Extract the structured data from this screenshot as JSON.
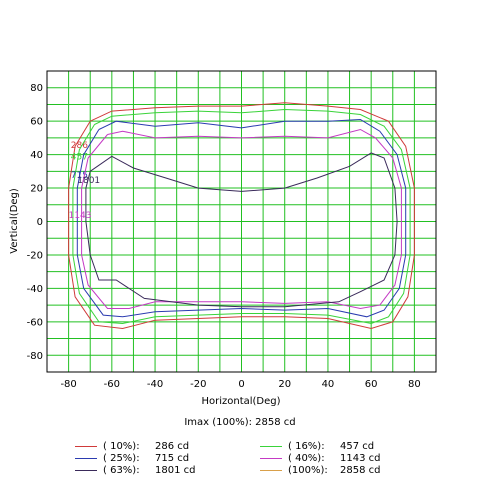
{
  "chart_data": {
    "type": "line",
    "xlabel": "Horizontal(Deg)",
    "ylabel": "Vertical(Deg)",
    "xlim": [
      -90,
      90
    ],
    "ylim": [
      -90,
      90
    ],
    "x_ticks": [
      "-80",
      "-60",
      "-40",
      "-20",
      "0",
      "20",
      "40",
      "60",
      "80"
    ],
    "y_ticks": [
      "80",
      "60",
      "40",
      "20",
      "0",
      "-20",
      "-40",
      "-60",
      "-80"
    ],
    "grid": true,
    "grid_color": "#22c022",
    "imax_label": "Imax (100%): 2858 cd",
    "series": [
      {
        "name": "( 10%):   286 cd",
        "pct": "( 10%):",
        "val": "286 cd",
        "color": "#d03a3a",
        "label": "286",
        "label_xy": [
          -79,
          44
        ],
        "points": [
          [
            -70,
            60
          ],
          [
            -60,
            66
          ],
          [
            -40,
            68
          ],
          [
            -20,
            69
          ],
          [
            0,
            69
          ],
          [
            20,
            71
          ],
          [
            40,
            69
          ],
          [
            55,
            67
          ],
          [
            68,
            60
          ],
          [
            76,
            45
          ],
          [
            80,
            20
          ],
          [
            80,
            -20
          ],
          [
            77,
            -45
          ],
          [
            70,
            -60
          ],
          [
            60,
            -64
          ],
          [
            40,
            -58
          ],
          [
            20,
            -57
          ],
          [
            0,
            -57
          ],
          [
            -20,
            -58
          ],
          [
            -40,
            -59
          ],
          [
            -55,
            -64
          ],
          [
            -68,
            -62
          ],
          [
            -77,
            -45
          ],
          [
            -80,
            -20
          ],
          [
            -80,
            20
          ],
          [
            -77,
            45
          ],
          [
            -70,
            60
          ]
        ]
      },
      {
        "name": "( 16%):   457 cd",
        "pct": "( 16%):",
        "val": "457 cd",
        "color": "#3ad33a",
        "label": "457",
        "label_xy": [
          -79,
          37
        ],
        "points": [
          [
            -68,
            58
          ],
          [
            -60,
            63
          ],
          [
            -40,
            65
          ],
          [
            -20,
            66
          ],
          [
            0,
            65
          ],
          [
            20,
            67
          ],
          [
            40,
            66
          ],
          [
            55,
            64
          ],
          [
            66,
            57
          ],
          [
            74,
            43
          ],
          [
            78,
            20
          ],
          [
            78,
            -20
          ],
          [
            75,
            -43
          ],
          [
            68,
            -57
          ],
          [
            60,
            -61
          ],
          [
            40,
            -56
          ],
          [
            20,
            -55
          ],
          [
            0,
            -55
          ],
          [
            -20,
            -56
          ],
          [
            -40,
            -57
          ],
          [
            -55,
            -61
          ],
          [
            -66,
            -60
          ],
          [
            -75,
            -43
          ],
          [
            -78,
            -20
          ],
          [
            -78,
            20
          ],
          [
            -75,
            43
          ],
          [
            -68,
            58
          ]
        ]
      },
      {
        "name": "( 25%):   715 cd",
        "pct": "( 25%):",
        "val": "715 cd",
        "color": "#2b3bb0",
        "label": "715",
        "label_xy": [
          -79,
          26
        ],
        "points": [
          [
            -66,
            55
          ],
          [
            -58,
            60
          ],
          [
            -40,
            57
          ],
          [
            -20,
            59
          ],
          [
            0,
            56
          ],
          [
            20,
            60
          ],
          [
            40,
            60
          ],
          [
            55,
            61
          ],
          [
            64,
            54
          ],
          [
            72,
            40
          ],
          [
            76,
            20
          ],
          [
            76,
            -20
          ],
          [
            73,
            -40
          ],
          [
            66,
            -53
          ],
          [
            58,
            -57
          ],
          [
            40,
            -52
          ],
          [
            20,
            -53
          ],
          [
            0,
            -52
          ],
          [
            -20,
            -53
          ],
          [
            -40,
            -54
          ],
          [
            -55,
            -57
          ],
          [
            -64,
            -56
          ],
          [
            -73,
            -40
          ],
          [
            -76,
            -20
          ],
          [
            -76,
            20
          ],
          [
            -73,
            40
          ],
          [
            -66,
            55
          ]
        ]
      },
      {
        "name": "( 40%):  1143 cd",
        "pct": "( 40%):",
        "val": "1143 cd",
        "color": "#c43ac4",
        "label": "1143",
        "label_xy": [
          -80,
          2
        ],
        "points": [
          [
            -62,
            52
          ],
          [
            -55,
            54
          ],
          [
            -40,
            50
          ],
          [
            -20,
            51
          ],
          [
            0,
            50
          ],
          [
            20,
            51
          ],
          [
            40,
            50
          ],
          [
            55,
            55
          ],
          [
            62,
            50
          ],
          [
            70,
            38
          ],
          [
            74,
            20
          ],
          [
            74,
            -20
          ],
          [
            71,
            -38
          ],
          [
            64,
            -50
          ],
          [
            55,
            -52
          ],
          [
            40,
            -48
          ],
          [
            20,
            -49
          ],
          [
            0,
            -48
          ],
          [
            -20,
            -48
          ],
          [
            -40,
            -48
          ],
          [
            -52,
            -52
          ],
          [
            -62,
            -52
          ],
          [
            -71,
            -38
          ],
          [
            -74,
            -20
          ],
          [
            -74,
            20
          ],
          [
            -71,
            38
          ],
          [
            -62,
            52
          ]
        ]
      },
      {
        "name": "( 63%):  1801 cd",
        "pct": "( 63%):",
        "val": "1801 cd",
        "color": "#3a2a5a",
        "label": "1801",
        "label_xy": [
          -76,
          23
        ],
        "points": [
          [
            -70,
            30
          ],
          [
            -60,
            39
          ],
          [
            -50,
            32
          ],
          [
            -35,
            26
          ],
          [
            -20,
            20
          ],
          [
            0,
            18
          ],
          [
            20,
            20
          ],
          [
            35,
            26
          ],
          [
            50,
            33
          ],
          [
            60,
            41
          ],
          [
            66,
            38
          ],
          [
            71,
            20
          ],
          [
            72,
            0
          ],
          [
            71,
            -20
          ],
          [
            66,
            -35
          ],
          [
            55,
            -42
          ],
          [
            45,
            -48
          ],
          [
            20,
            -51
          ],
          [
            0,
            -51
          ],
          [
            -20,
            -50
          ],
          [
            -45,
            -46
          ],
          [
            -58,
            -35
          ],
          [
            -66,
            -35
          ],
          [
            -70,
            -20
          ],
          [
            -72,
            0
          ],
          [
            -72,
            20
          ],
          [
            -70,
            30
          ]
        ]
      },
      {
        "name": "(100%):  2858 cd",
        "pct": "(100%):",
        "val": "2858 cd",
        "color": "#d9a04a",
        "label": "",
        "label_xy": [
          0,
          0
        ],
        "points": []
      }
    ]
  }
}
